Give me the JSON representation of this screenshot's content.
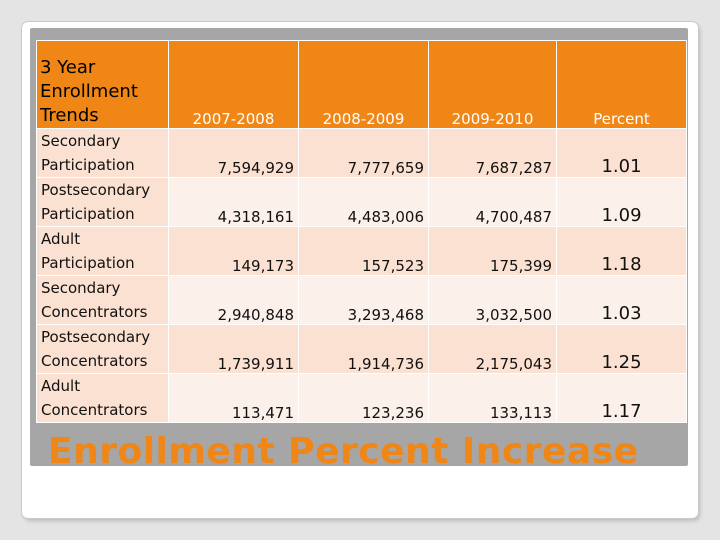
{
  "table": {
    "corner_label": "3 Year Enrollment Trends",
    "headers": [
      "2007-2008",
      "2008-2009",
      "2009-2010",
      "Percent"
    ],
    "rows": [
      {
        "label": "Secondary Participation",
        "values": [
          "7,594,929",
          "7,777,659",
          "7,687,287"
        ],
        "percent": "1.01"
      },
      {
        "label": "Postsecondary Participation",
        "values": [
          "4,318,161",
          "4,483,006",
          "4,700,487"
        ],
        "percent": "1.09"
      },
      {
        "label": "Adult Participation",
        "values": [
          "149,173",
          "157,523",
          "175,399"
        ],
        "percent": "1.18"
      },
      {
        "label": "Secondary Concentrators",
        "values": [
          "2,940,848",
          "3,293,468",
          "3,032,500"
        ],
        "percent": "1.03"
      },
      {
        "label": "Postsecondary Concentrators",
        "values": [
          "1,739,911",
          "1,914,736",
          "2,175,043"
        ],
        "percent": "1.25"
      },
      {
        "label": "Adult Concentrators",
        "values": [
          "113,471",
          "123,236",
          "133,113"
        ],
        "percent": "1.17"
      }
    ]
  },
  "banner": "Enrollment Percent Increase",
  "colors": {
    "accent": "#ef8616",
    "row_dark": "#fbe1d1",
    "row_light": "#fbf0ea"
  }
}
